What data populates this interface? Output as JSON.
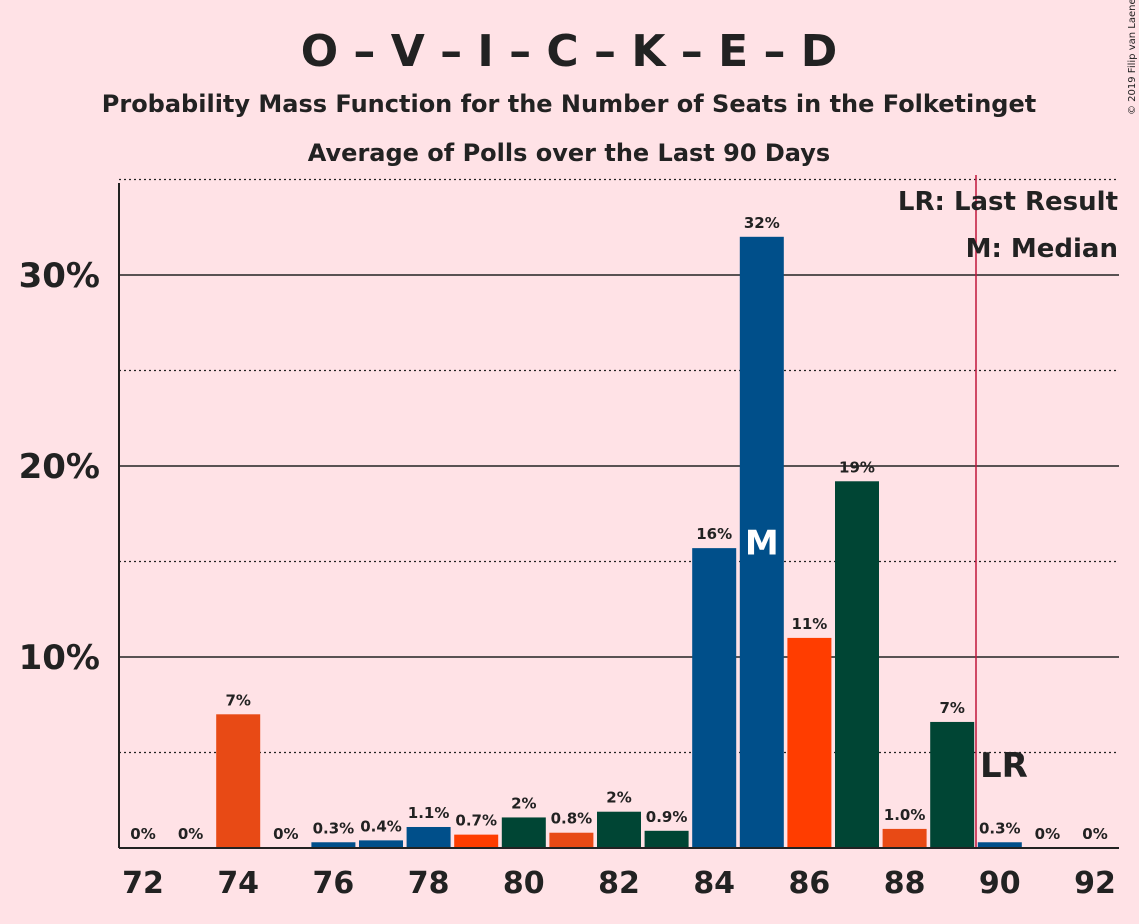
{
  "chart_data": {
    "type": "bar",
    "title": "O – V – I – C – K – E – D",
    "subtitle": "Probability Mass Function for the Number of Seats in the Folketinget",
    "subtitle2": "Average of Polls over the Last 90 Days",
    "copyright": "© 2019 Filip van Laenen",
    "x": [
      72,
      73,
      74,
      75,
      76,
      77,
      78,
      79,
      80,
      81,
      82,
      83,
      84,
      85,
      86,
      87,
      88,
      89,
      90,
      91,
      92
    ],
    "values": [
      0,
      0,
      7.0,
      0,
      0.3,
      0.4,
      1.1,
      0.7,
      1.6,
      0.8,
      1.9,
      0.9,
      15.7,
      32.0,
      11.0,
      19.2,
      1.0,
      6.6,
      0.3,
      0,
      0
    ],
    "labels": [
      "0%",
      "0%",
      "7%",
      "0%",
      "0.3%",
      "0.4%",
      "1.1%",
      "0.7%",
      "2%",
      "0.8%",
      "2%",
      "0.9%",
      "16%",
      "32%",
      "11%",
      "19%",
      "1.0%",
      "7%",
      "0.3%",
      "0%",
      "0%"
    ],
    "colors": [
      "#e84a15",
      "#e84a15",
      "#e84a15",
      "#004f8a",
      "#004f8a",
      "#004f8a",
      "#004f8a",
      "#ff3d00",
      "#004534",
      "#e84a15",
      "#004534",
      "#004534",
      "#004f8a",
      "#004f8a",
      "#ff3d00",
      "#004534",
      "#e84a15",
      "#004534",
      "#004f8a",
      "#004f8a",
      "#004f8a"
    ],
    "xticks": [
      "72",
      "74",
      "76",
      "78",
      "80",
      "82",
      "84",
      "86",
      "88",
      "90",
      "92"
    ],
    "yticks": [
      "10%",
      "20%",
      "30%"
    ],
    "ylim": [
      0,
      35
    ],
    "grid": true,
    "median": {
      "seat": 85,
      "label": "M"
    },
    "last_result": {
      "seat": 89.5,
      "label": "LR",
      "line_color": "#c0163c"
    },
    "legend": [
      "LR: Last Result",
      "M: Median"
    ],
    "legend_position": "top-right"
  }
}
